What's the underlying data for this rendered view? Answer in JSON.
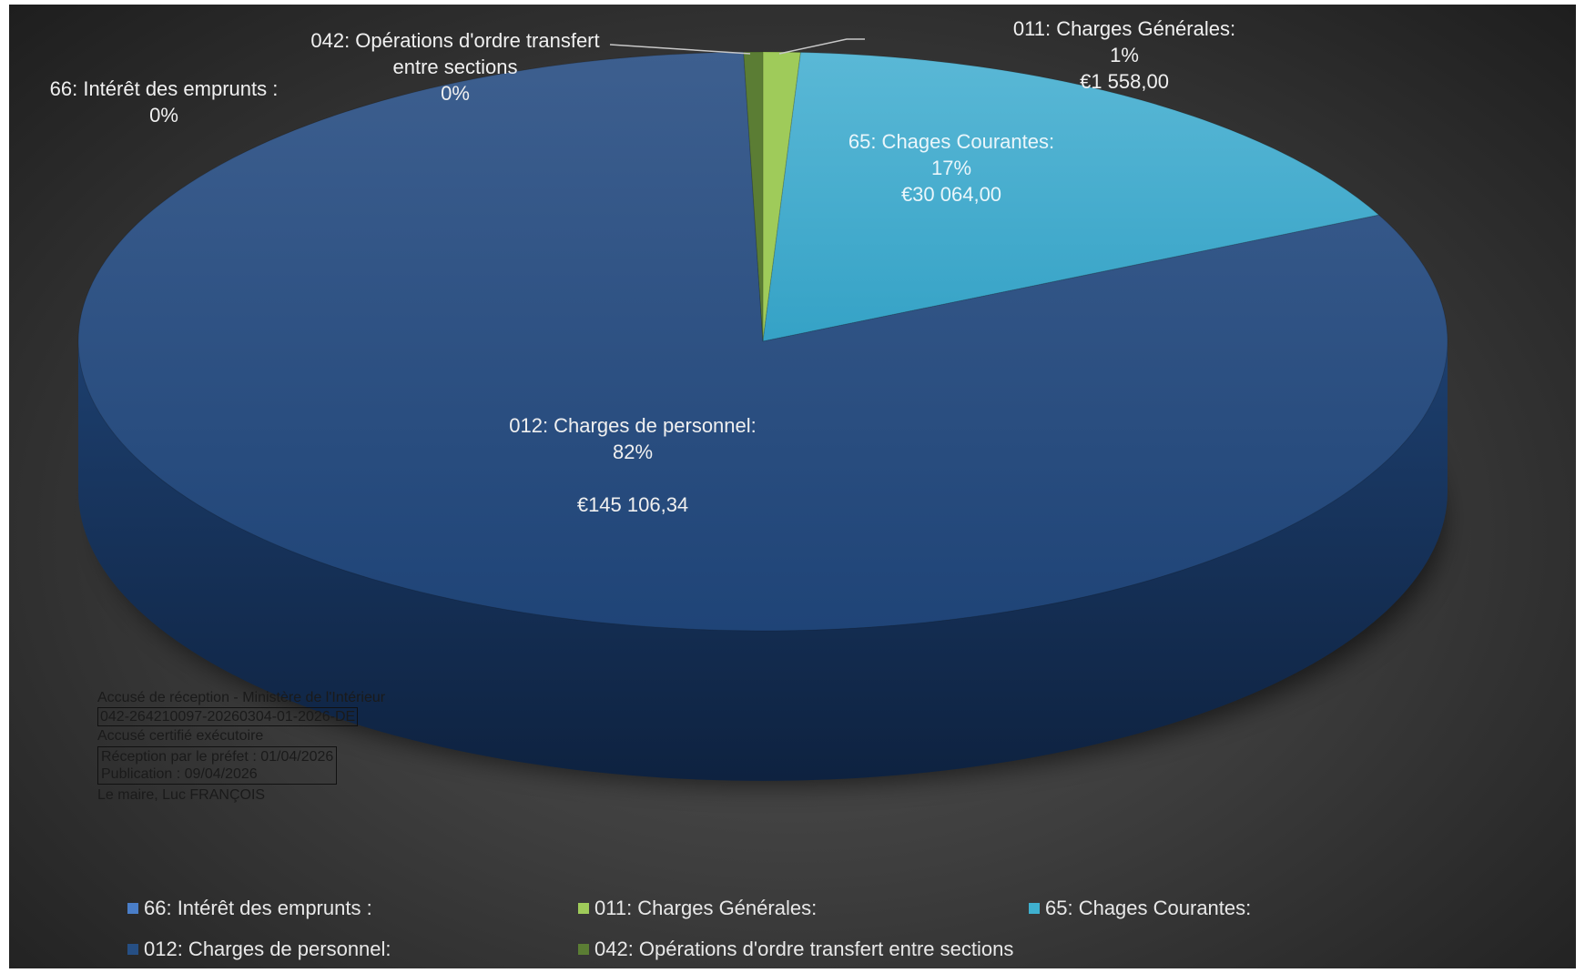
{
  "chart_data": {
    "type": "pie",
    "title": "",
    "categories": [
      "66: Intérêt des emprunts :",
      "011: Charges Générales:",
      "65: Chages Courantes:",
      "012: Charges de personnel:",
      "042: Opérations d'ordre transfert entre sections"
    ],
    "values": [
      0,
      1558.0,
      30064.0,
      145106.34,
      800
    ],
    "percent_labels": [
      "0%",
      "1%",
      "17%",
      "82%",
      "0%"
    ],
    "value_labels": [
      "",
      "€1 558,00",
      "€30 064,00",
      "€145 106,34",
      ""
    ],
    "colors": [
      "#4a7ec8",
      "#9fcb5a",
      "#3fb0cf",
      "#264f84",
      "#5b7d34"
    ],
    "legend_position": "bottom",
    "grid": false
  },
  "labels": {
    "interet_name": "66: Intérêt des emprunts :",
    "interet_pct": "0%",
    "operations_name_1": "042: Opérations d'ordre transfert",
    "operations_name_2": "entre sections",
    "operations_pct": "0%",
    "generales_name": "011: Charges Générales:",
    "generales_pct": "1%",
    "generales_value": "€1 558,00",
    "courantes_name": "65: Chages Courantes:",
    "courantes_pct": "17%",
    "courantes_value": "€30 064,00",
    "personnel_name": "012: Charges de personnel:",
    "personnel_pct": "82%",
    "personnel_value": "€145 106,34"
  },
  "legend": [
    {
      "label": "66: Intérêt des emprunts :",
      "color": "#4a7ec8"
    },
    {
      "label": "011: Charges Générales:",
      "color": "#9fcb5a"
    },
    {
      "label": "65: Chages Courantes:",
      "color": "#3fb0cf"
    },
    {
      "label": "012: Charges de personnel:",
      "color": "#264f84"
    },
    {
      "label": "042: Opérations d'ordre transfert entre sections",
      "color": "#5b7d34"
    }
  ],
  "stamp": {
    "line1": "Accusé de réception - Ministère de l'Intérieur",
    "line2": "042-264210097-20260304-01-2026-DE",
    "line3": "Accusé certifié exécutoire",
    "line4": "Réception par le préfet : 01/04/2026",
    "line5": "Publication : 09/04/2026",
    "line6": "Le maire, Luc FRANÇOIS"
  }
}
